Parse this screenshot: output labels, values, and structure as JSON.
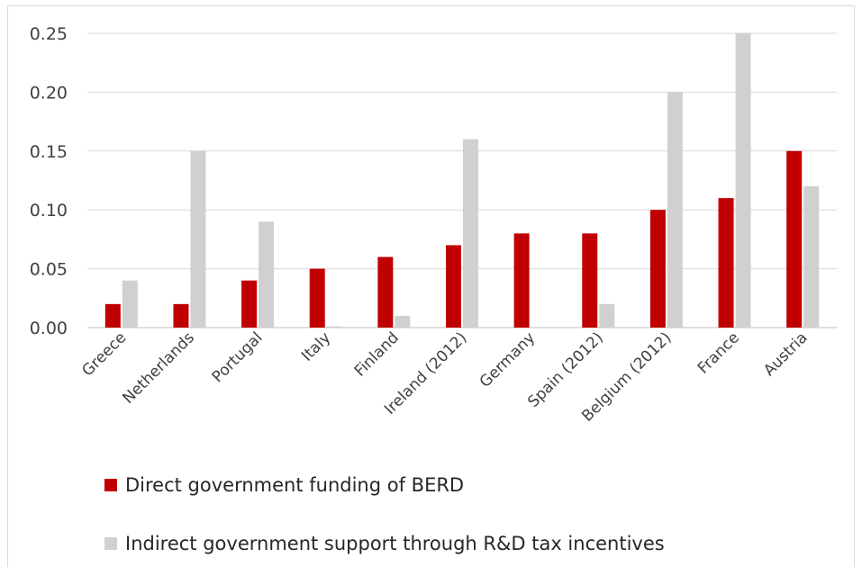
{
  "chart_data": {
    "type": "bar",
    "categories": [
      "Greece",
      "Netherlands",
      "Portugal",
      "Italy",
      "Finland",
      "Ireland (2012)",
      "Germany",
      "Spain (2012)",
      "Belgium (2012)",
      "France",
      "Austria"
    ],
    "series": [
      {
        "name": "Direct government funding of BERD",
        "color": "#c00000",
        "values": [
          0.02,
          0.02,
          0.04,
          0.05,
          0.06,
          0.07,
          0.08,
          0.08,
          0.1,
          0.11,
          0.15
        ]
      },
      {
        "name": "Indirect government support through R&D tax incentives",
        "color": "#d0d0d0",
        "values": [
          0.04,
          0.15,
          0.09,
          0.001,
          0.01,
          0.16,
          0,
          0.02,
          0.2,
          0.25,
          0.12
        ]
      }
    ],
    "yticks": [
      "0.00",
      "0.05",
      "0.10",
      "0.15",
      "0.20",
      "0.25"
    ],
    "ylim": [
      0,
      0.25
    ],
    "grid": true,
    "legend_position": "bottom-left",
    "title": "",
    "xlabel": "",
    "ylabel": ""
  }
}
